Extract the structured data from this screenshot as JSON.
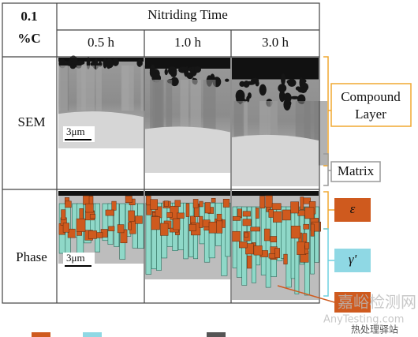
{
  "header": {
    "corner": [
      "0.1",
      "%C"
    ],
    "title": "Nitriding Time",
    "columns": [
      "0.5 h",
      "1.0 h",
      "3.0 h"
    ]
  },
  "rows": [
    {
      "label": "SEM",
      "scale_bar": "3μm"
    },
    {
      "label": "Phase",
      "scale_bar": "3μm"
    }
  ],
  "annotations": {
    "compound_layer": "Compound Layer",
    "matrix": "Matrix",
    "epsilon": "ε",
    "gamma_prime": "γ'"
  },
  "watermark": {
    "site": "嘉峪检测网",
    "url": "AnyTesting.com",
    "source": "热处理驿站"
  }
}
